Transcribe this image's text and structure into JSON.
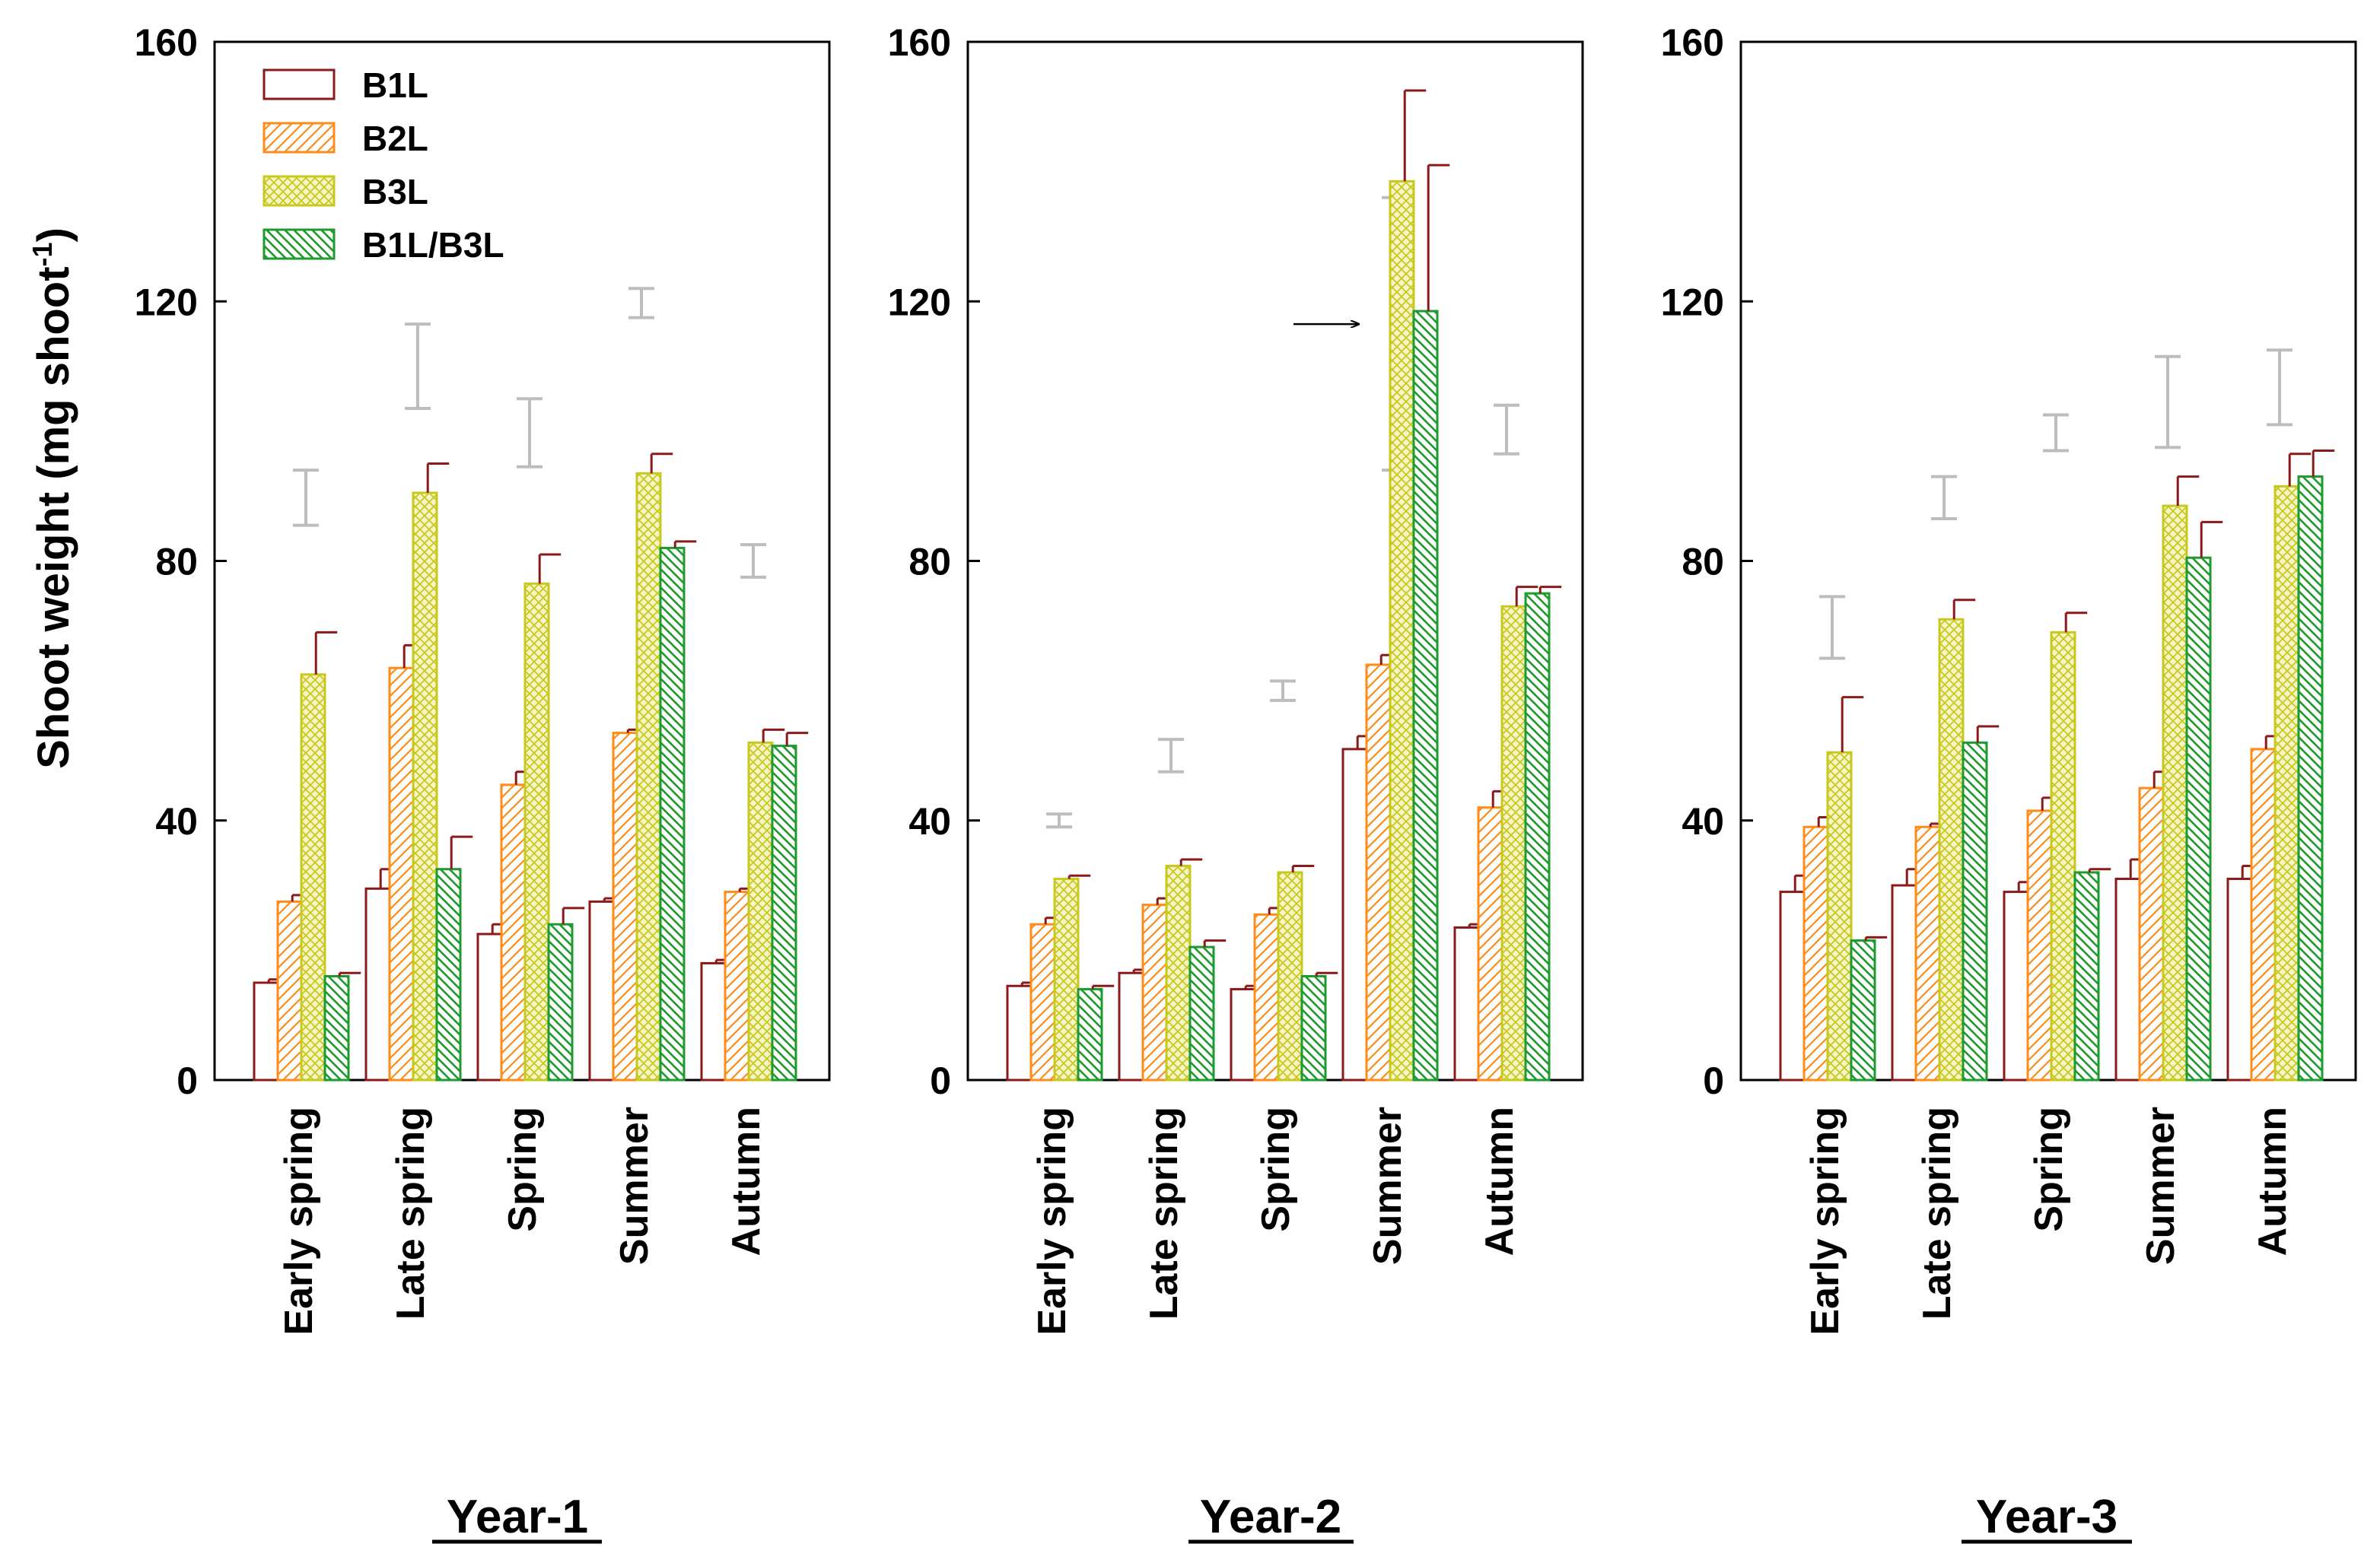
{
  "chart_data": {
    "type": "bar",
    "ylabel": "Shoot weight (mg shoot",
    "ylabel_sup": "-1",
    "ylabel_end": ")",
    "ylim": [
      0,
      160
    ],
    "yticks": [
      "0",
      "40",
      "80",
      "120",
      "160"
    ],
    "categories": [
      "Early spring",
      "Late spring",
      "Spring",
      "Summer",
      "Autumn"
    ],
    "legend": [
      "B1L",
      "B2L",
      "B3L",
      "B1L/B3L"
    ],
    "colors": {
      "B1L": "#8b1a1a",
      "B2L": "#ff8c1a",
      "B3L": "#c8c81e",
      "B1L/B3L": "#1e9a2e",
      "lsd": "#bdbdbd",
      "arrow": "#000000"
    },
    "panels": [
      {
        "title": "Year-1",
        "series": [
          {
            "name": "B1L",
            "values": [
              15,
              29.5,
              22.5,
              27.5,
              18
            ],
            "errors": [
              0.5,
              3,
              1.5,
              0.5,
              0.5
            ]
          },
          {
            "name": "B2L",
            "values": [
              27.5,
              63.5,
              45.5,
              53.5,
              29
            ],
            "errors": [
              1,
              3.5,
              2,
              0.5,
              0.5
            ]
          },
          {
            "name": "B3L",
            "values": [
              62.5,
              90.5,
              76.5,
              93.5,
              52
            ],
            "errors": [
              6.5,
              4.5,
              4.5,
              3,
              2
            ]
          },
          {
            "name": "B1L/B3L",
            "values": [
              16,
              32.5,
              24,
              82,
              51.5
            ],
            "errors": [
              0.5,
              5,
              2.5,
              1,
              2
            ]
          }
        ],
        "lsd": [
          {
            "low": 85.5,
            "high": 94
          },
          {
            "low": 103.5,
            "high": 116.5
          },
          {
            "low": 94.5,
            "high": 105
          },
          {
            "low": 117.5,
            "high": 122
          },
          {
            "low": 77.5,
            "high": 82.5
          }
        ]
      },
      {
        "title": "Year-2",
        "series": [
          {
            "name": "B1L",
            "values": [
              14.5,
              16.5,
              14,
              51,
              23.5
            ],
            "errors": [
              0.5,
              0.5,
              0.5,
              2,
              0.5
            ]
          },
          {
            "name": "B2L",
            "values": [
              24,
              27,
              25.5,
              64,
              42
            ],
            "errors": [
              1,
              1,
              1,
              1.5,
              2.5
            ]
          },
          {
            "name": "B3L",
            "values": [
              31,
              33,
              32,
              138.5,
              73
            ],
            "errors": [
              0.5,
              1,
              1,
              14,
              3
            ]
          },
          {
            "name": "B1L/B3L",
            "values": [
              14,
              20.5,
              16,
              118.5,
              75
            ],
            "errors": [
              0.5,
              1,
              0.5,
              22.5,
              1
            ]
          }
        ],
        "lsd": [
          {
            "low": 39,
            "high": 41
          },
          {
            "low": 47.5,
            "high": 52.5
          },
          {
            "low": 58.5,
            "high": 61.5
          },
          {
            "low": 94,
            "high": 136
          },
          {
            "low": 96.5,
            "high": 104
          }
        ],
        "annotation": {
          "type": "arrow",
          "target": "Summer B3L"
        }
      },
      {
        "title": "Year-3",
        "series": [
          {
            "name": "B1L",
            "values": [
              29,
              30,
              29,
              31,
              31
            ],
            "errors": [
              2.5,
              2.5,
              1.5,
              3,
              2
            ]
          },
          {
            "name": "B2L",
            "values": [
              39,
              39,
              41.5,
              45,
              51
            ],
            "errors": [
              1.5,
              0.5,
              2,
              2.5,
              2
            ]
          },
          {
            "name": "B3L",
            "values": [
              50.5,
              71,
              69,
              88.5,
              91.5
            ],
            "errors": [
              8.5,
              3,
              3,
              4.5,
              5
            ]
          },
          {
            "name": "B1L/B3L",
            "values": [
              21.5,
              52,
              32,
              80.5,
              93
            ],
            "errors": [
              0.5,
              2.5,
              0.5,
              5.5,
              4
            ]
          }
        ],
        "lsd": [
          {
            "low": 65,
            "high": 74.5
          },
          {
            "low": 86.5,
            "high": 93
          },
          {
            "low": 97,
            "high": 102.5
          },
          {
            "low": 97.5,
            "high": 111.5
          },
          {
            "low": 101,
            "high": 112.5
          }
        ]
      }
    ]
  }
}
